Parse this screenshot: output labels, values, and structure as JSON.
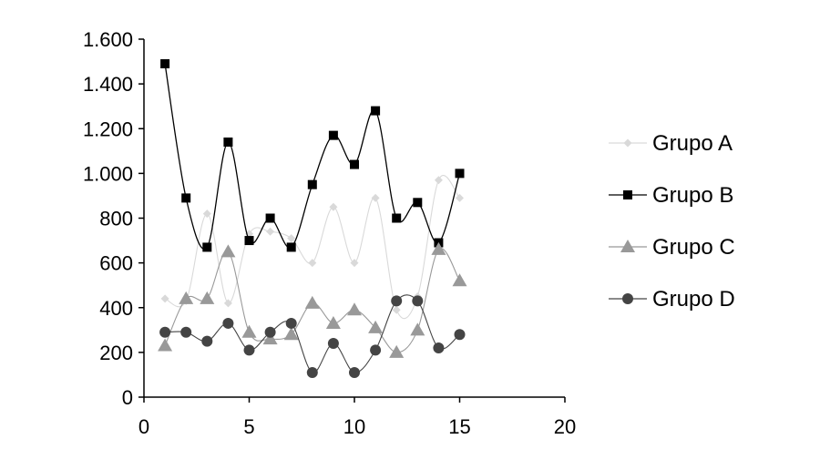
{
  "chart_data": {
    "type": "line",
    "title": "",
    "xlabel": "",
    "ylabel": "",
    "xlim": [
      0,
      20
    ],
    "ylim": [
      0,
      1600
    ],
    "x_ticks": [
      0,
      5,
      10,
      15,
      20
    ],
    "x_tick_labels": [
      "0",
      "5",
      "10",
      "15",
      "20"
    ],
    "y_ticks": [
      0,
      200,
      400,
      600,
      800,
      1000,
      1200,
      1400,
      1600
    ],
    "y_tick_labels": [
      "0",
      "200",
      "400",
      "600",
      "800",
      "1.000",
      "1.200",
      "1.400",
      "1.600"
    ],
    "grid": false,
    "legend_position": "right",
    "smooth": true,
    "x": [
      1,
      2,
      3,
      4,
      5,
      6,
      7,
      8,
      9,
      10,
      11,
      12,
      13,
      14,
      15
    ],
    "series": [
      {
        "name": "Grupo A",
        "marker": "diamond",
        "color": "#d9d9d9",
        "values": [
          440,
          430,
          820,
          420,
          730,
          740,
          710,
          600,
          850,
          600,
          890,
          390,
          450,
          970,
          890
        ]
      },
      {
        "name": "Grupo B",
        "marker": "square",
        "color": "#000000",
        "values": [
          1490,
          890,
          670,
          1140,
          700,
          800,
          670,
          950,
          1170,
          1040,
          1280,
          800,
          870,
          690,
          1000
        ]
      },
      {
        "name": "Grupo C",
        "marker": "triangle",
        "color": "#999999",
        "values": [
          230,
          440,
          440,
          650,
          290,
          260,
          280,
          420,
          330,
          390,
          310,
          200,
          300,
          660,
          520
        ]
      },
      {
        "name": "Grupo D",
        "marker": "circle",
        "color": "#444444",
        "values": [
          290,
          290,
          250,
          330,
          210,
          290,
          330,
          110,
          240,
          110,
          210,
          430,
          430,
          220,
          280
        ]
      }
    ]
  }
}
